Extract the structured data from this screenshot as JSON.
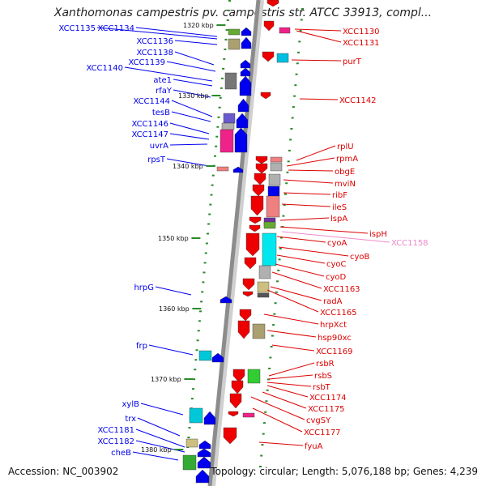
{
  "title": "Xanthomonas campestris pv. campestris str. ATCC 33913, compl...",
  "footer": {
    "accession": "Accession: NC_003902",
    "topology": "Topology: circular; Length: 5,076,188 bp; Genes: 4,239"
  },
  "colors": {
    "forward_label": "#0000ee",
    "reverse_label": "#dd0000",
    "rna_label": "#ee88cc",
    "backbone": "#8c8c8c",
    "kbp_tick": "#2a8a2a"
  },
  "kbp_labels": [
    "1320 kbp",
    "1330 kbp",
    "1340 kbp",
    "1350 kbp",
    "1360 kbp",
    "1370 kbp",
    "1380 kbp"
  ],
  "left_genes": [
    "XCC1135",
    "XCC1134",
    "XCC1136",
    "XCC1138",
    "XCC1139",
    "XCC1140",
    "ate1",
    "rfaY",
    "XCC1144",
    "tesB",
    "XCC1146",
    "XCC1147",
    "uvrA",
    "rpsT",
    "hrpG",
    "frp",
    "xylB",
    "trx",
    "XCC1181",
    "XCC1182",
    "cheB"
  ],
  "right_genes": [
    "XCC1130",
    "XCC1131",
    "purT",
    "XCC1142",
    "rplU",
    "rpmA",
    "obgE",
    "mviN",
    "ribF",
    "ileS",
    "lspA",
    "ispH",
    "cyoA",
    "cyoB",
    "cyoC",
    "cyoD",
    "XCC1163",
    "radA",
    "XCC1165",
    "hrpXct",
    "hsp90xc",
    "XCC1169",
    "rsbR",
    "rsbS",
    "rsbT",
    "XCC1174",
    "XCC1175",
    "cvgSY",
    "XCC1177",
    "fyuA"
  ],
  "rna_genes": [
    "XCC1158"
  ]
}
